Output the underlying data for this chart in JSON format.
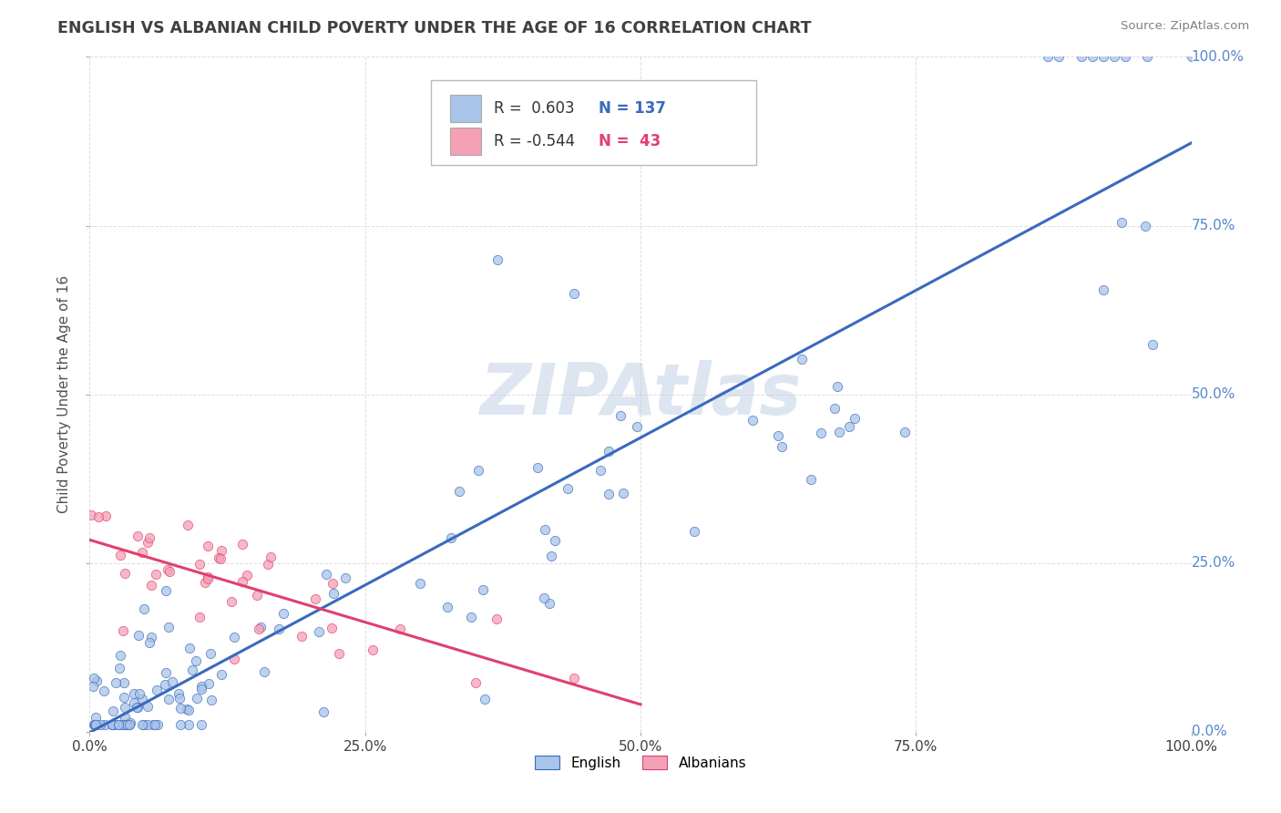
{
  "title": "ENGLISH VS ALBANIAN CHILD POVERTY UNDER THE AGE OF 16 CORRELATION CHART",
  "source": "Source: ZipAtlas.com",
  "ylabel": "Child Poverty Under the Age of 16",
  "english_R": 0.603,
  "english_N": 137,
  "albanian_R": -0.544,
  "albanian_N": 43,
  "english_color": "#a8c4e8",
  "albanian_color": "#f4a0b5",
  "english_line_color": "#3a6abf",
  "albanian_line_color": "#e04070",
  "background_color": "#ffffff",
  "grid_color": "#c8c8c8",
  "title_color": "#404040",
  "watermark_color": "#dde6f0",
  "tick_color_right": "#5588cc",
  "tick_color_bottom": "#404040"
}
